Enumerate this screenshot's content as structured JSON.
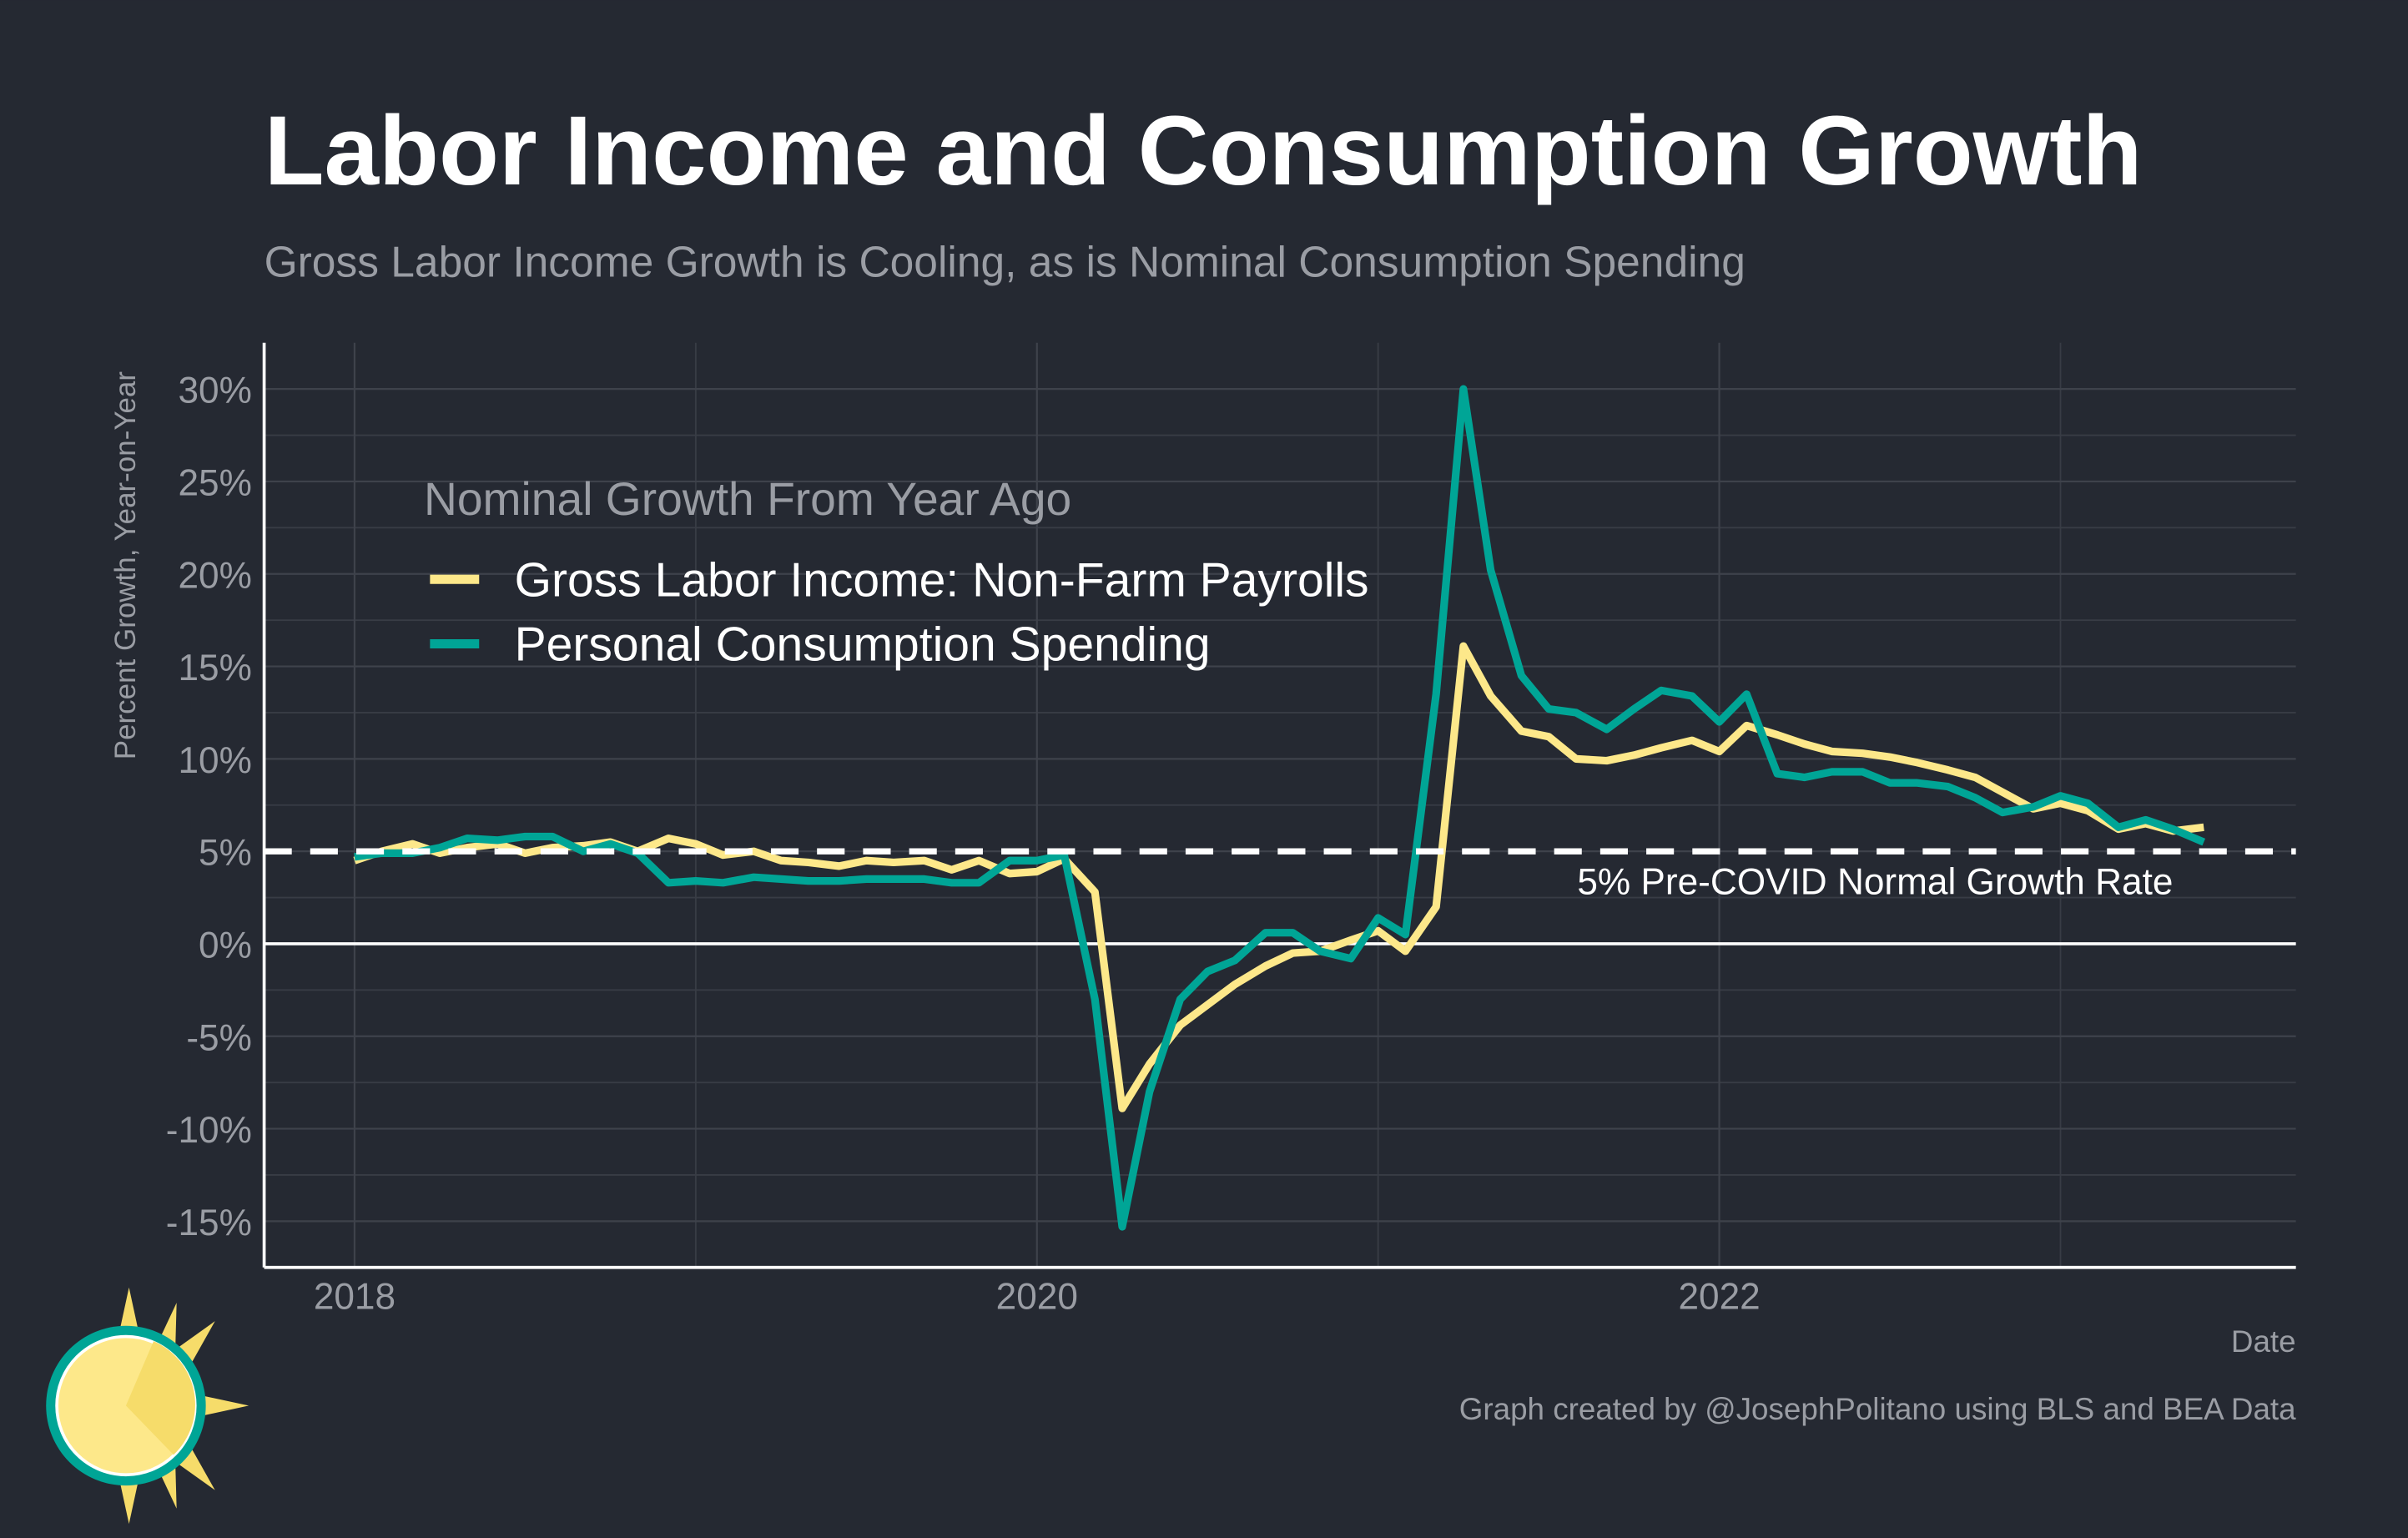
{
  "chart_data": {
    "type": "line",
    "title": "Labor Income and Consumption Growth",
    "subtitle": "Gross Labor Income Growth is Cooling, as is Nominal Consumption Spending",
    "y_label": "Percent Growth, Year-on-Year",
    "x_label": "Date",
    "caption": "Graph created by @JosephPolitano using BLS and BEA Data",
    "legend_title": "Nominal Growth From Year Ago",
    "legend": "upper-left",
    "grid": true,
    "xlim": [
      2017.735,
      2023.69
    ],
    "xticks": [
      2018,
      2020,
      2022
    ],
    "ylim": [
      -17.5,
      32.5
    ],
    "yticks": [
      {
        "value": -15,
        "label": "-15%"
      },
      {
        "value": -10,
        "label": "-10%"
      },
      {
        "value": -5,
        "label": "-5%"
      },
      {
        "value": 0,
        "label": "0%"
      },
      {
        "value": 5,
        "label": "5%"
      },
      {
        "value": 10,
        "label": "10%"
      },
      {
        "value": 15,
        "label": "15%"
      },
      {
        "value": 20,
        "label": "20%"
      },
      {
        "value": 25,
        "label": "25%"
      },
      {
        "value": 30,
        "label": "30%"
      }
    ],
    "hline": {
      "value": 5,
      "label": "5% Pre-COVID Normal Growth Rate"
    },
    "x": [
      2018.0,
      2018.08,
      2018.17,
      2018.25,
      2018.33,
      2018.42,
      2018.5,
      2018.58,
      2018.67,
      2018.75,
      2018.83,
      2018.92,
      2019.0,
      2019.08,
      2019.17,
      2019.25,
      2019.33,
      2019.42,
      2019.5,
      2019.58,
      2019.67,
      2019.75,
      2019.83,
      2019.92,
      2020.0,
      2020.08,
      2020.17,
      2020.25,
      2020.33,
      2020.42,
      2020.5,
      2020.58,
      2020.67,
      2020.75,
      2020.83,
      2020.92,
      2021.0,
      2021.08,
      2021.17,
      2021.25,
      2021.33,
      2021.42,
      2021.5,
      2021.58,
      2021.67,
      2021.75,
      2021.83,
      2021.92,
      2022.0,
      2022.08,
      2022.17,
      2022.25,
      2022.33,
      2022.42,
      2022.5,
      2022.58,
      2022.67,
      2022.75,
      2022.83,
      2022.92,
      2023.0,
      2023.08,
      2023.17,
      2023.25,
      2023.33,
      2023.42
    ],
    "series": [
      {
        "name": "Gross Labor Income: Non-Farm Payrolls",
        "color": "#fde88a",
        "values": [
          4.5,
          5.0,
          5.4,
          4.9,
          5.2,
          5.4,
          4.9,
          5.2,
          5.3,
          5.5,
          5.0,
          5.7,
          5.4,
          4.8,
          5.0,
          4.5,
          4.4,
          4.2,
          4.5,
          4.4,
          4.5,
          4.0,
          4.5,
          3.8,
          3.9,
          4.6,
          2.8,
          -8.9,
          -6.5,
          -4.4,
          -3.3,
          -2.2,
          -1.2,
          -0.5,
          -0.4,
          0.2,
          0.7,
          -0.4,
          2.0,
          16.1,
          13.4,
          11.5,
          11.2,
          10.0,
          9.9,
          10.2,
          10.6,
          11.0,
          10.4,
          11.8,
          11.3,
          10.8,
          10.4,
          10.3,
          10.1,
          9.8,
          9.4,
          9.0,
          8.2,
          7.3,
          7.6,
          7.2,
          6.2,
          6.5,
          6.1,
          6.3
        ]
      },
      {
        "name": "Personal Consumption Spending",
        "color": "#00a596",
        "values": [
          4.7,
          4.9,
          4.9,
          5.2,
          5.7,
          5.6,
          5.8,
          5.8,
          5.0,
          5.4,
          4.9,
          3.3,
          3.4,
          3.3,
          3.6,
          3.5,
          3.4,
          3.4,
          3.5,
          3.5,
          3.5,
          3.3,
          3.3,
          4.5,
          4.5,
          4.8,
          -3.0,
          -15.3,
          -8.0,
          -3.0,
          -1.5,
          -0.9,
          0.6,
          0.6,
          -0.4,
          -0.8,
          1.4,
          0.5,
          13.5,
          30.0,
          20.2,
          14.5,
          12.7,
          12.5,
          11.6,
          12.7,
          13.7,
          13.4,
          12.0,
          13.5,
          9.2,
          9.0,
          9.3,
          9.3,
          8.7,
          8.7,
          8.5,
          7.9,
          7.1,
          7.4,
          8.0,
          7.6,
          6.3,
          6.7,
          6.2,
          5.5
        ]
      }
    ]
  }
}
